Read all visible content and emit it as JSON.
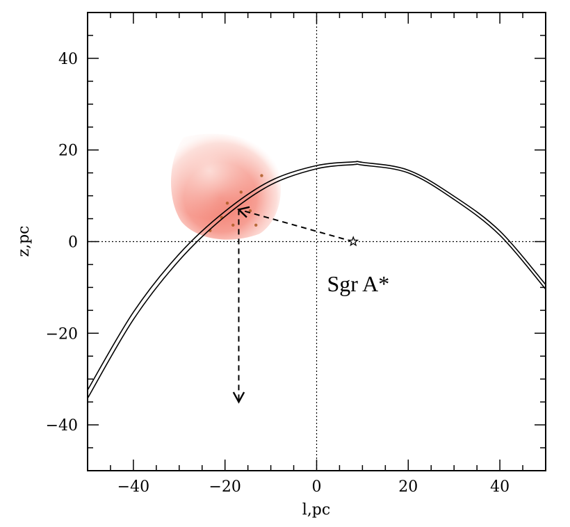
{
  "chart_data": {
    "type": "line",
    "xlabel": "l,pc",
    "ylabel": "z,pc",
    "xlim": [
      -50,
      50
    ],
    "ylim": [
      -50,
      50
    ],
    "x_ticks": [
      -40,
      -20,
      0,
      20,
      40
    ],
    "y_ticks": [
      -40,
      -20,
      0,
      20,
      40
    ],
    "x_tick_labels": [
      "−40",
      "−20",
      "0",
      "20",
      "40"
    ],
    "y_tick_labels": [
      "−40",
      "−20",
      "0",
      "20",
      "40"
    ],
    "minor_tick_step": 5,
    "reference_lines": [
      {
        "axis": "x",
        "value": 0,
        "style": "dotted"
      },
      {
        "axis": "y",
        "value": 0,
        "style": "dotted"
      }
    ],
    "curves": [
      {
        "style": "solid",
        "x": [
          -50,
          -40,
          -30,
          -20,
          -10,
          0,
          8,
          10,
          20,
          30,
          40,
          50
        ],
        "y": [
          -32.4,
          -15.4,
          -2.7,
          6.6,
          13.3,
          16.6,
          17.4,
          17.3,
          15.6,
          9.9,
          2.3,
          -9.4
        ]
      },
      {
        "style": "solid",
        "x": [
          -50,
          -40,
          -30,
          -20,
          -10,
          0,
          8,
          10,
          20,
          30,
          40,
          50
        ],
        "y": [
          -34.2,
          -17.0,
          -4.1,
          5.5,
          12.4,
          15.9,
          16.8,
          16.7,
          15.0,
          9.2,
          1.4,
          -10.4
        ]
      }
    ],
    "arrows": [
      {
        "style": "dashed",
        "from": [
          8,
          0
        ],
        "to": [
          -17,
          7
        ]
      },
      {
        "style": "dashed",
        "from": [
          -17,
          7
        ],
        "to": [
          -17,
          -35
        ]
      }
    ],
    "markers": [
      {
        "symbol": "star",
        "x": 8,
        "y": 0,
        "label": "Sgr A*",
        "label_x": 5,
        "label_y": -9
      }
    ],
    "image_overlay": {
      "description_color": "#f08070",
      "x_range": [
        -32,
        -7
      ],
      "y_range": [
        0,
        24
      ]
    }
  }
}
